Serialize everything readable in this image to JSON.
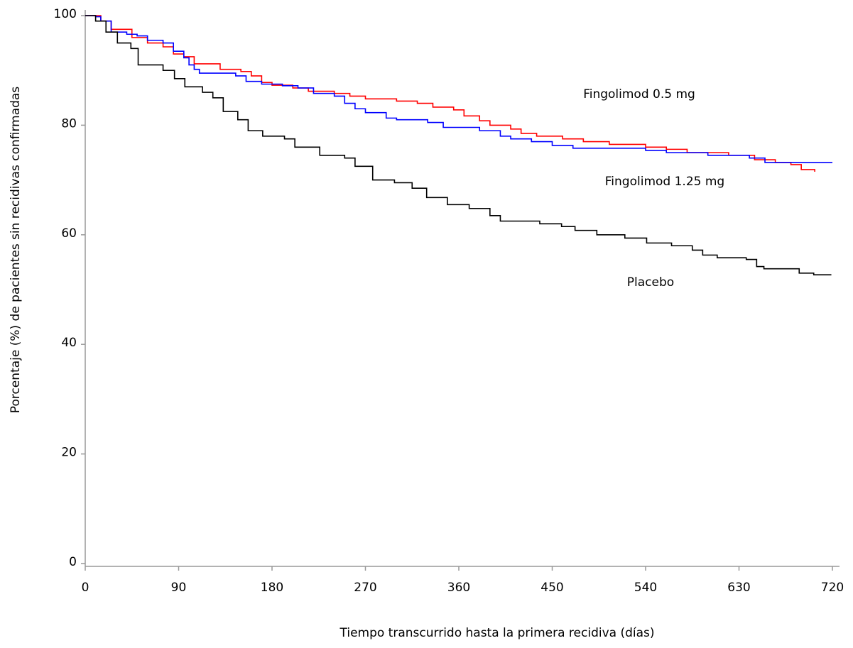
{
  "chart_data": {
    "type": "line",
    "step": true,
    "x_label": "Tiempo transcurrido hasta la primera recidiva (días)",
    "y_label": "Porcentaje (%) de pacientes sin recidivas confirmadas",
    "xlim": [
      0,
      720
    ],
    "xticks": [
      0,
      90,
      180,
      270,
      360,
      450,
      540,
      630,
      720
    ],
    "ylim": [
      0,
      100
    ],
    "yticks": [
      0,
      20,
      40,
      60,
      80,
      100
    ],
    "series": [
      {
        "name": "Fingolimod 0.5 mg",
        "color": "#ff0000",
        "x": [
          0,
          15,
          25,
          45,
          60,
          75,
          85,
          95,
          105,
          130,
          150,
          160,
          170,
          180,
          200,
          215,
          240,
          255,
          270,
          300,
          320,
          335,
          355,
          365,
          380,
          390,
          410,
          420,
          435,
          460,
          480,
          505,
          540,
          560,
          580,
          620,
          645,
          665,
          680,
          690,
          703
        ],
        "values": [
          100,
          99,
          97.5,
          96,
          95,
          94.3,
          93,
          92.5,
          91.2,
          90.2,
          89.8,
          89,
          87.8,
          87.3,
          86.8,
          86.2,
          85.8,
          85.3,
          84.8,
          84.4,
          84,
          83.3,
          82.8,
          81.7,
          80.8,
          80,
          79.3,
          78.5,
          78,
          77.5,
          77,
          76.5,
          76,
          75.6,
          75,
          74.5,
          73.7,
          73.2,
          72.8,
          71.9,
          71.5
        ]
      },
      {
        "name": "Fingolimod 1.25 mg",
        "color": "#0000ff",
        "x": [
          0,
          10,
          15,
          25,
          40,
          50,
          60,
          75,
          85,
          95,
          100,
          105,
          110,
          145,
          155,
          170,
          190,
          205,
          220,
          240,
          250,
          260,
          270,
          290,
          300,
          330,
          345,
          380,
          400,
          410,
          430,
          450,
          470,
          540,
          560,
          600,
          640,
          655,
          720
        ],
        "values": [
          100,
          99.8,
          99,
          97,
          96.6,
          96.3,
          95.5,
          95,
          93.5,
          92.3,
          91,
          90.2,
          89.5,
          89,
          88,
          87.5,
          87.2,
          86.8,
          85.8,
          85.3,
          84,
          83,
          82.3,
          81.3,
          81,
          80.5,
          79.6,
          79,
          78,
          77.5,
          77,
          76.3,
          75.8,
          75.4,
          75,
          74.5,
          74,
          73.2,
          73.2
        ]
      },
      {
        "name": "Placebo",
        "color": "#000000",
        "x": [
          0,
          10,
          20,
          31,
          44,
          51,
          75,
          86,
          96,
          113,
          123,
          133,
          147,
          157,
          171,
          192,
          202,
          226,
          250,
          260,
          277,
          298,
          315,
          329,
          349,
          370,
          390,
          400,
          438,
          459,
          472,
          493,
          520,
          541,
          565,
          585,
          595,
          609,
          637,
          647,
          654,
          688,
          702,
          719
        ],
        "values": [
          100,
          99,
          97,
          95,
          94,
          91,
          90,
          88.5,
          87,
          86,
          85,
          82.5,
          81,
          79,
          78,
          77.5,
          76,
          74.5,
          74,
          72.5,
          70,
          69.5,
          68.5,
          66.8,
          65.5,
          64.8,
          63.5,
          62.5,
          62,
          61.5,
          60.8,
          60,
          59.4,
          58.5,
          58,
          57.2,
          56.3,
          55.8,
          55.5,
          54.2,
          53.8,
          53,
          52.7,
          52.7
        ]
      }
    ]
  }
}
